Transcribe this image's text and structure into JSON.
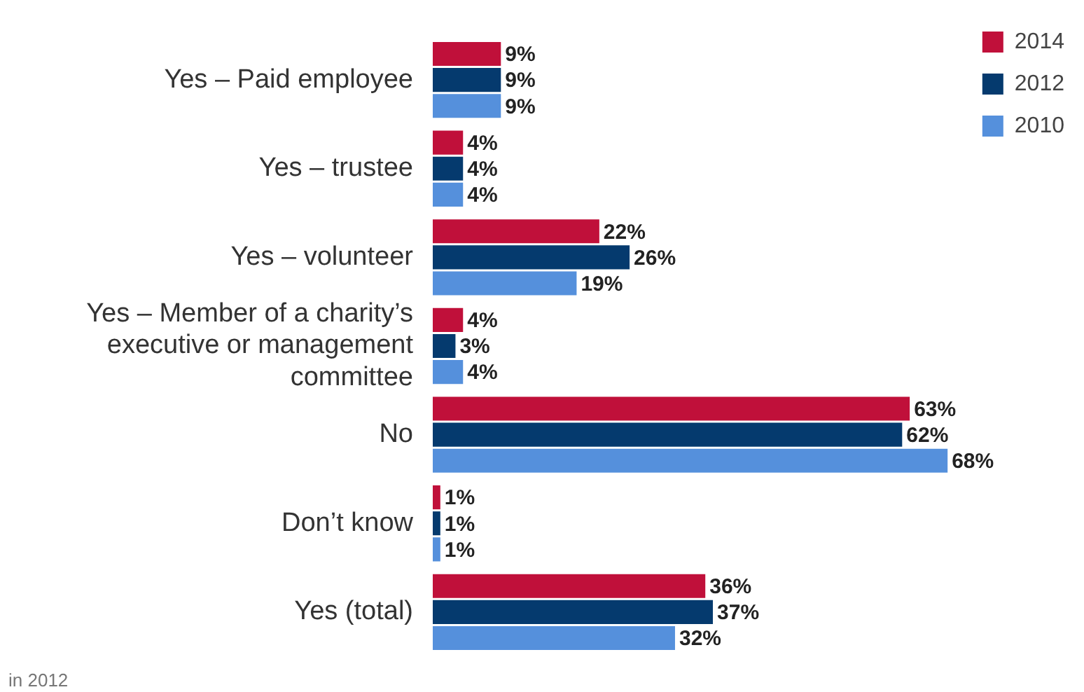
{
  "chart_data": {
    "type": "bar",
    "orientation": "horizontal",
    "categories": [
      "Yes – Paid employee",
      "Yes – trustee",
      "Yes – volunteer",
      "Yes – Member of a charity’s executive or management committee",
      "No",
      "Don’t know",
      "Yes (total)"
    ],
    "series": [
      {
        "name": "2014",
        "color": "#c0103a",
        "values": [
          9,
          4,
          22,
          4,
          63,
          1,
          36
        ],
        "value_labels": [
          "9%",
          "4%",
          "22%",
          "4%",
          "63%",
          "1%",
          "36%"
        ]
      },
      {
        "name": "2012",
        "color": "#053a6e",
        "values": [
          9,
          4,
          26,
          3,
          62,
          1,
          37
        ],
        "value_labels": [
          "9%",
          "4%",
          "26%",
          "3%",
          "62%",
          "1%",
          "37%"
        ]
      },
      {
        "name": "2010",
        "color": "#5590dc",
        "values": [
          9,
          4,
          19,
          4,
          68,
          1,
          32
        ],
        "value_labels": [
          "9%",
          "4%",
          "19%",
          "4%",
          "68%",
          "1%",
          "32%"
        ]
      }
    ],
    "legend": "top right",
    "grid": false,
    "tick_labels": "y",
    "annotations": [
      "in 2012"
    ]
  }
}
